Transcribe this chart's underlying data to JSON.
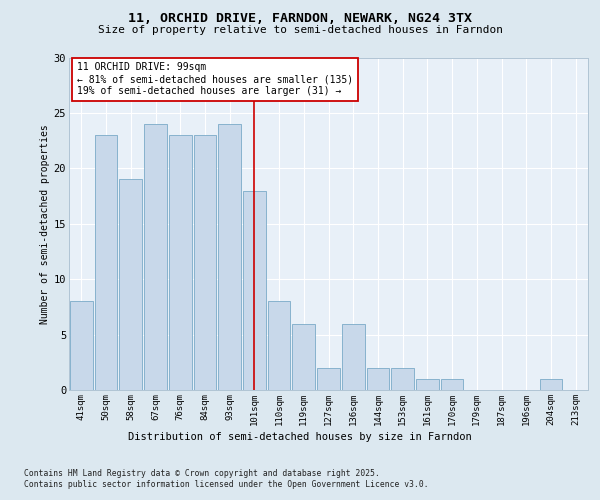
{
  "title1": "11, ORCHID DRIVE, FARNDON, NEWARK, NG24 3TX",
  "title2": "Size of property relative to semi-detached houses in Farndon",
  "xlabel": "Distribution of semi-detached houses by size in Farndon",
  "ylabel": "Number of semi-detached properties",
  "categories": [
    "41sqm",
    "50sqm",
    "58sqm",
    "67sqm",
    "76sqm",
    "84sqm",
    "93sqm",
    "101sqm",
    "110sqm",
    "119sqm",
    "127sqm",
    "136sqm",
    "144sqm",
    "153sqm",
    "161sqm",
    "170sqm",
    "179sqm",
    "187sqm",
    "196sqm",
    "204sqm",
    "213sqm"
  ],
  "values": [
    8,
    23,
    19,
    24,
    23,
    23,
    24,
    18,
    8,
    6,
    2,
    6,
    2,
    2,
    1,
    1,
    0,
    0,
    0,
    1,
    0
  ],
  "bar_color": "#c8d8ea",
  "bar_edge_color": "#7aaac8",
  "highlight_index": 7,
  "highlight_line_color": "#cc0000",
  "annotation_text": "11 ORCHID DRIVE: 99sqm\n← 81% of semi-detached houses are smaller (135)\n19% of semi-detached houses are larger (31) →",
  "annotation_box_color": "#ffffff",
  "annotation_box_edge": "#cc0000",
  "ylim": [
    0,
    30
  ],
  "yticks": [
    0,
    5,
    10,
    15,
    20,
    25,
    30
  ],
  "footnote1": "Contains HM Land Registry data © Crown copyright and database right 2025.",
  "footnote2": "Contains public sector information licensed under the Open Government Licence v3.0.",
  "bg_color": "#dce8f0",
  "plot_bg_color": "#e8f0f8",
  "grid_color": "#ffffff"
}
